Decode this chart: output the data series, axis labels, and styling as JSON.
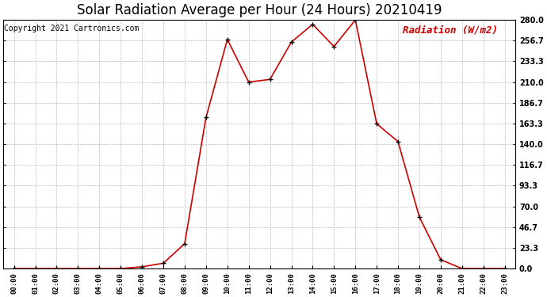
{
  "title": "Solar Radiation Average per Hour (24 Hours) 20210419",
  "copyright_text": "Copyright 2021 Cartronics.com",
  "legend_text": "Radiation (W/m2)",
  "hours": [
    "00:00",
    "01:00",
    "02:00",
    "03:00",
    "04:00",
    "05:00",
    "06:00",
    "07:00",
    "08:00",
    "09:00",
    "10:00",
    "11:00",
    "12:00",
    "13:00",
    "14:00",
    "15:00",
    "16:00",
    "17:00",
    "18:00",
    "19:00",
    "20:00",
    "21:00",
    "22:00",
    "23:00"
  ],
  "values": [
    0.0,
    0.0,
    0.0,
    0.0,
    0.0,
    0.0,
    2.0,
    6.0,
    28.0,
    170.0,
    258.0,
    210.0,
    213.0,
    255.0,
    275.0,
    250.0,
    280.0,
    163.0,
    143.0,
    58.0,
    10.0,
    0.0,
    0.0,
    0.0
  ],
  "line_color": "#cc0000",
  "marker_color": "#000000",
  "bg_color": "#ffffff",
  "grid_color": "#bbbbbb",
  "title_fontsize": 12,
  "copyright_fontsize": 7,
  "legend_fontsize": 9,
  "ymin": 0.0,
  "ymax": 280.0,
  "yticks": [
    0.0,
    23.3,
    46.7,
    70.0,
    93.3,
    116.7,
    140.0,
    163.3,
    186.7,
    210.0,
    233.3,
    256.7,
    280.0
  ],
  "ytick_labels": [
    "0.0",
    "23.3",
    "46.7",
    "70.0",
    "93.3",
    "116.7",
    "140.0",
    "163.3",
    "186.7",
    "210.0",
    "233.3",
    "256.7",
    "280.0"
  ]
}
